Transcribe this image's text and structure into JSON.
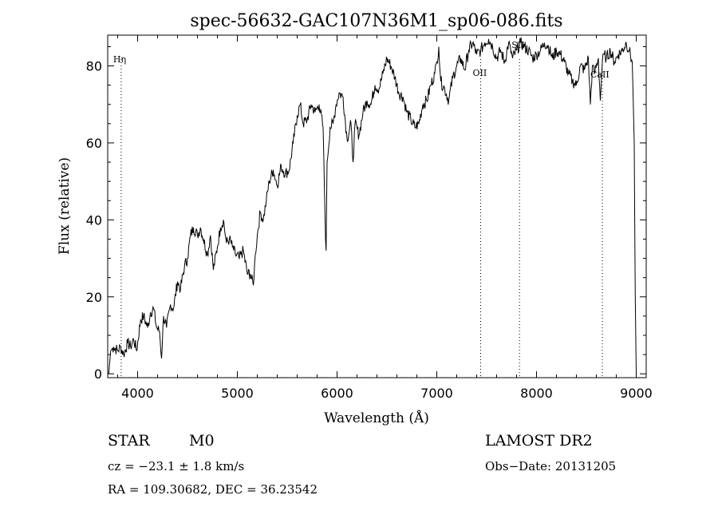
{
  "chart_data": {
    "type": "line",
    "title": "spec-56632-GAC107N36M1_sp06-086.fits",
    "xlabel": "Wavelength (Å)",
    "ylabel": "Flux (relative)",
    "xlim": [
      3700,
      9100
    ],
    "ylim": [
      -1,
      88
    ],
    "xticks": [
      4000,
      5000,
      6000,
      7000,
      8000,
      9000
    ],
    "yticks": [
      0,
      20,
      40,
      60,
      80
    ],
    "grid": false,
    "lines": [
      {
        "label": "Hη",
        "x": 3835
      },
      {
        "label": "OII",
        "x": 7440
      },
      {
        "label": "SII",
        "x": 7830
      },
      {
        "label": "CaII",
        "x": 8660
      }
    ],
    "series": [
      {
        "x": [
          3710,
          3730,
          3760,
          3800,
          3830,
          3860,
          3900,
          3930,
          3960,
          3990,
          4030,
          4060,
          4100,
          4130,
          4160,
          4190,
          4220,
          4240,
          4260,
          4290,
          4330,
          4360,
          4400,
          4430,
          4470,
          4500,
          4530,
          4560,
          4600,
          4630,
          4660,
          4700,
          4730,
          4760,
          4800,
          4830,
          4860,
          4890,
          4920,
          4950,
          4980,
          5020,
          5060,
          5100,
          5130,
          5160,
          5180,
          5200,
          5230,
          5260,
          5290,
          5320,
          5360,
          5400,
          5440,
          5480,
          5520,
          5560,
          5600,
          5630,
          5660,
          5700,
          5740,
          5780,
          5820,
          5860,
          5880,
          5890,
          5900,
          5930,
          5960,
          5990,
          6020,
          6060,
          6100,
          6140,
          6160,
          6180,
          6220,
          6260,
          6300,
          6340,
          6380,
          6420,
          6460,
          6500,
          6540,
          6580,
          6620,
          6660,
          6700,
          6740,
          6780,
          6820,
          6860,
          6900,
          6940,
          6980,
          7000,
          7020,
          7040,
          7080,
          7120,
          7160,
          7200,
          7240,
          7280,
          7320,
          7360,
          7400,
          7440,
          7480,
          7520,
          7560,
          7600,
          7640,
          7680,
          7720,
          7760,
          7800,
          7840,
          7880,
          7920,
          7960,
          8000,
          8040,
          8080,
          8120,
          8160,
          8200,
          8240,
          8280,
          8320,
          8360,
          8400,
          8440,
          8480,
          8520,
          8540,
          8560,
          8580,
          8620,
          8640,
          8660,
          8680,
          8700,
          8740,
          8780,
          8820,
          8860,
          8900,
          8930,
          8960,
          8980,
          8990,
          9000
        ],
        "y": [
          0,
          6,
          7,
          6,
          7,
          5,
          8,
          7,
          9,
          6,
          14,
          15,
          12,
          16,
          17,
          12,
          11,
          4,
          15,
          12,
          18,
          17,
          24,
          22,
          28,
          30,
          36,
          38,
          36,
          38,
          35,
          31,
          36,
          27,
          33,
          38,
          40,
          34,
          35,
          33,
          31,
          30,
          32,
          26,
          26,
          23,
          31,
          36,
          42,
          40,
          45,
          50,
          53,
          49,
          54,
          52,
          53,
          60,
          67,
          70,
          65,
          66,
          70,
          68,
          70,
          64,
          40,
          32,
          55,
          64,
          65,
          70,
          73,
          72,
          61,
          65,
          55,
          65,
          62,
          68,
          71,
          70,
          75,
          74,
          78,
          82,
          80,
          77,
          73,
          72,
          68,
          66,
          64,
          65,
          70,
          71,
          75,
          78,
          81,
          85,
          76,
          74,
          71,
          77,
          80,
          82,
          79,
          84,
          86,
          83,
          84,
          86,
          87,
          85,
          82,
          84,
          81,
          86,
          82,
          84,
          86,
          85,
          84,
          82,
          83,
          84,
          86,
          85,
          82,
          84,
          83,
          81,
          78,
          76,
          75,
          80,
          79,
          82,
          70,
          80,
          78,
          82,
          71,
          81,
          83,
          82,
          84,
          81,
          83,
          84,
          86,
          84,
          81,
          60,
          20,
          0
        ]
      }
    ]
  },
  "footer": {
    "object_class": "STAR",
    "subclass": "M0",
    "survey": "LAMOST DR2",
    "redshift": "cz = −23.1 ± 1.8 km/s",
    "obs_date": "Obs−Date: 20131205",
    "coords": "RA = 109.30682, DEC =  36.23542"
  }
}
